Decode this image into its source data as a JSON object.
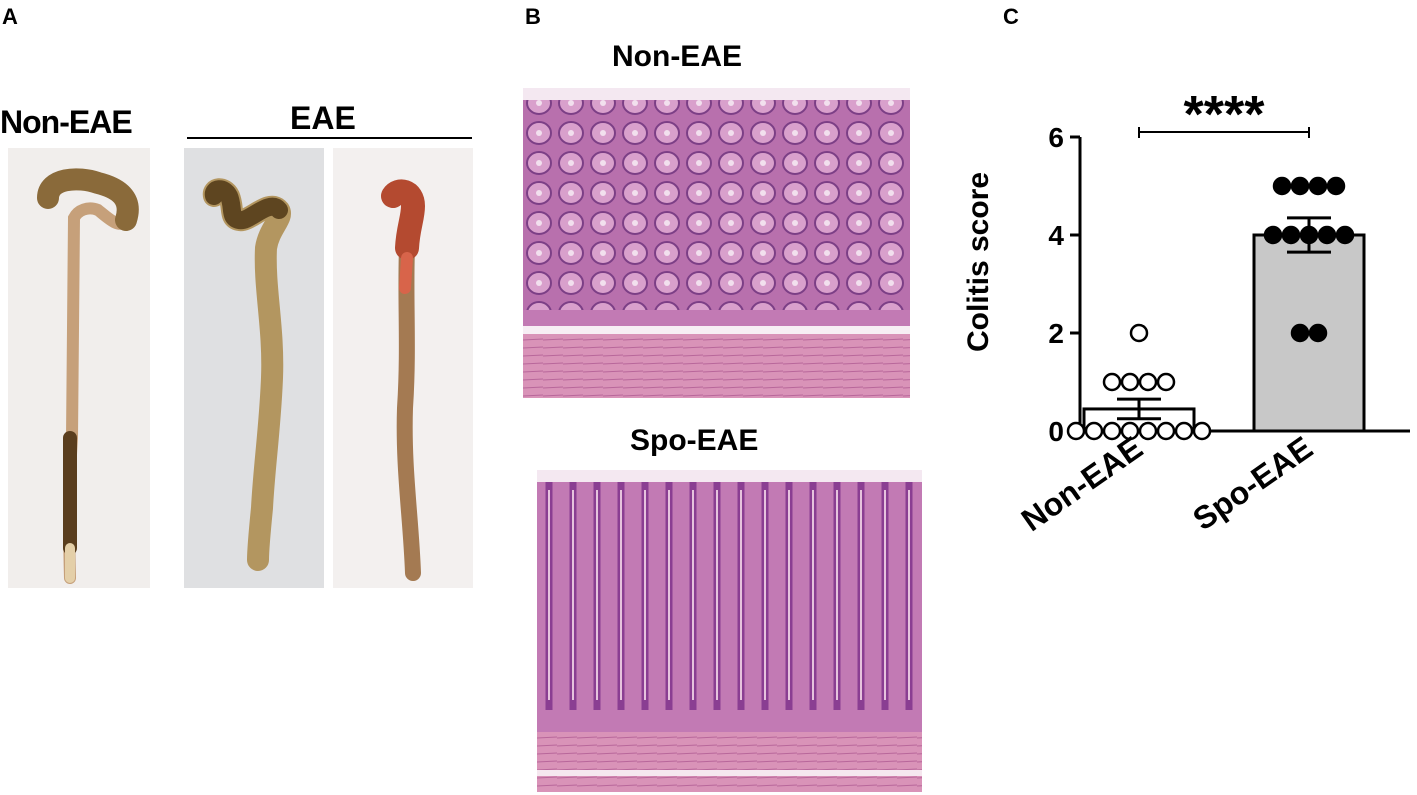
{
  "panel_a": {
    "letter": "A",
    "label_left": "Non-EAE",
    "label_group": "EAE"
  },
  "panel_b": {
    "letter": "B",
    "label_top": "Non-EAE",
    "label_bottom": "Spo-EAE"
  },
  "panel_c": {
    "letter": "C"
  },
  "colors": {
    "bar_fill": "#c8c8c8",
    "tissue_pink": "#d48ab8",
    "tissue_purple": "#9a5aa6",
    "intestine_tan": "#c9a77a"
  },
  "chart_data": {
    "type": "bar",
    "categories": [
      "Non-EAE",
      "Spo-EAE"
    ],
    "ylabel": "Colitis score",
    "ylim": [
      0,
      6
    ],
    "yticks": [
      0,
      2,
      4,
      6
    ],
    "bars": [
      {
        "category": "Non-EAE",
        "mean": 0.45,
        "sem": 0.2,
        "fill": "#ffffff",
        "points": [
          0,
          0,
          0,
          0,
          0,
          0,
          0,
          0,
          1,
          1,
          1,
          1,
          2
        ]
      },
      {
        "category": "Spo-EAE",
        "mean": 4.0,
        "sem": 0.35,
        "fill": "#c8c8c8",
        "points": [
          5,
          5,
          5,
          5,
          4,
          4,
          4,
          4,
          4,
          2,
          2
        ]
      }
    ],
    "significance": "****"
  }
}
